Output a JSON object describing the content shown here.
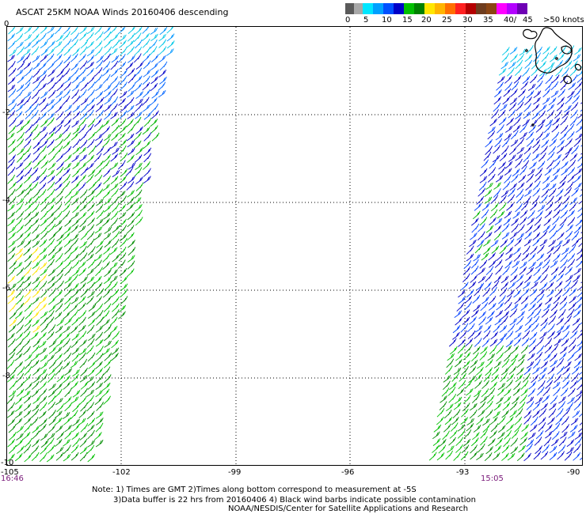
{
  "title": "ASCAT 25KM NOAA Winds 20160406 descending",
  "legend": {
    "colors": [
      "#5a5a5a",
      "#a8a8a8",
      "#00e6ff",
      "#00a0ff",
      "#0050ff",
      "#0000c8",
      "#00c000",
      "#008000",
      "#ffe600",
      "#ffb400",
      "#ff6e00",
      "#ff2020",
      "#b40000",
      "#6e3c1e",
      "#8b4513",
      "#ff00ff",
      "#b400ff",
      "#6e00b4"
    ],
    "labels": [
      "0",
      "5",
      "10",
      "15",
      "20",
      "25",
      "30",
      "35",
      "40/",
      "45",
      ">50 knots"
    ]
  },
  "map": {
    "lon_labels": [
      "-105",
      "-102",
      "-99",
      "-96",
      "-93",
      "-90"
    ],
    "lat_labels": [
      "0",
      "-2",
      "-4",
      "-6",
      "-8",
      "-10"
    ],
    "left_time": "16:46",
    "right_time": "15:05"
  },
  "notes": {
    "line1": "Note: 1) Times are GMT 2)Times along bottom correspond to measurement at -5S",
    "line2": "3)Data buffer is 22 hrs from 20160406 4) Black wind barbs indicate possible contamination",
    "line3": "NOAA/NESDIS/Center for Satellite Applications and Research"
  }
}
